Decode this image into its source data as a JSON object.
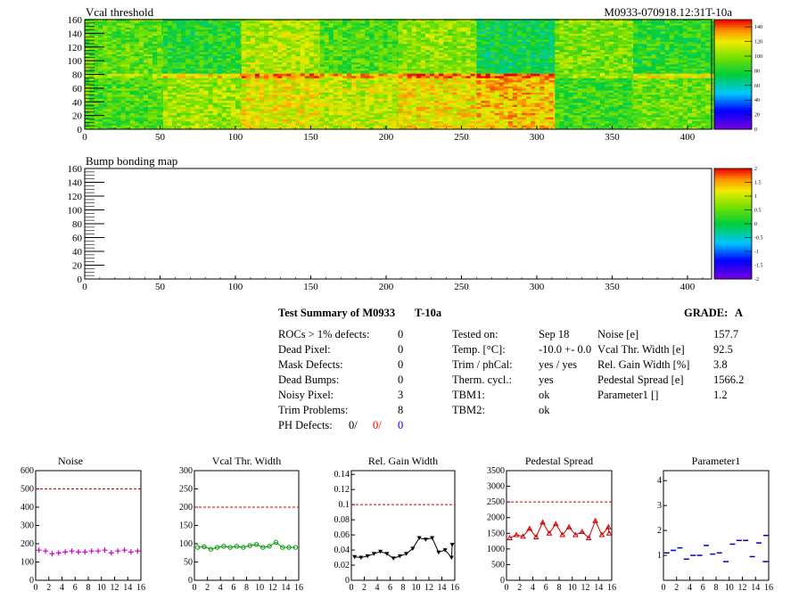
{
  "maps": [
    {
      "title": "Vcal threshold",
      "header_right": "M0933-070918.12:31T-10a",
      "x_ticks": [
        "0",
        "50",
        "100",
        "150",
        "200",
        "250",
        "300",
        "350",
        "400"
      ],
      "y_ticks": [
        "0",
        "20",
        "40",
        "60",
        "80",
        "100",
        "120",
        "140",
        "160"
      ],
      "palette_labels": [
        "0",
        "20",
        "40",
        "60",
        "80",
        "100",
        "120",
        "140"
      ],
      "palette_range": [
        0,
        150
      ]
    },
    {
      "title": "Bump bonding map",
      "x_ticks": [
        "0",
        "50",
        "100",
        "150",
        "200",
        "250",
        "300",
        "350",
        "400"
      ],
      "y_ticks": [
        "0",
        "20",
        "40",
        "60",
        "80",
        "100",
        "120",
        "140",
        "160"
      ],
      "palette_labels": [
        "-2",
        "-1.5",
        "-1",
        "-0.5",
        "0",
        "0.5",
        "1",
        "1.5",
        "2"
      ],
      "palette_range": [
        -2,
        2
      ]
    }
  ],
  "summary": {
    "heading": "Test Summary of M0933",
    "temp_tag": "T-10a",
    "grade_label": "GRADE:",
    "grade": "A",
    "col1": [
      {
        "label": "ROCs > 1% defects:",
        "value": "0"
      },
      {
        "label": "Dead Pixel:",
        "value": "0"
      },
      {
        "label": "Mask Defects:",
        "value": "0"
      },
      {
        "label": "Dead Bumps:",
        "value": "0"
      },
      {
        "label": "Noisy Pixel:",
        "value": "3"
      },
      {
        "label": "Trim Problems:",
        "value": "8"
      }
    ],
    "ph_label": "PH Defects:",
    "ph_values": [
      {
        "text": "0/",
        "color": "#000000"
      },
      {
        "text": "0/",
        "color": "#ff0000"
      },
      {
        "text": "0",
        "color": "#0000ff"
      }
    ],
    "col2": [
      {
        "label": "Tested on:",
        "value": "Sep 18"
      },
      {
        "label": "Temp. [°C]:",
        "value": "-10.0 +- 0.0"
      },
      {
        "label": "Trim / phCal:",
        "value": "yes / yes"
      },
      {
        "label": "Therm. cycl.:",
        "value": "yes"
      },
      {
        "label": "TBM1:",
        "value": "ok"
      },
      {
        "label": "TBM2:",
        "value": "ok"
      }
    ],
    "col3": [
      {
        "label": "Noise [e]",
        "value": "157.7"
      },
      {
        "label": "Vcal Thr. Width [e]",
        "value": "92.5"
      },
      {
        "label": "Rel. Gain Width [%]",
        "value": "3.8"
      },
      {
        "label": "Pedestal Spread [e]",
        "value": "1566.2"
      },
      {
        "label": "Parameter1 []",
        "value": "1.2"
      }
    ]
  },
  "chart_data": [
    {
      "type": "scatter",
      "title": "Noise",
      "color": "#cc00cc",
      "marker": "plus",
      "x": [
        0,
        1,
        2,
        3,
        4,
        5,
        6,
        7,
        8,
        9,
        10,
        11,
        12,
        13,
        14,
        15
      ],
      "values": [
        165,
        160,
        145,
        150,
        155,
        160,
        155,
        155,
        160,
        160,
        165,
        150,
        160,
        165,
        155,
        160
      ],
      "ylim": [
        0,
        600
      ],
      "y_ticks": [
        "0",
        "100",
        "200",
        "300",
        "400",
        "500",
        "600"
      ],
      "limit": 500,
      "connect": false
    },
    {
      "type": "line",
      "title": "Vcal Thr. Width",
      "color": "#009900",
      "marker": "circle",
      "x": [
        0,
        1,
        2,
        3,
        4,
        5,
        6,
        7,
        8,
        9,
        10,
        11,
        12,
        13,
        14,
        15
      ],
      "values": [
        90,
        92,
        85,
        90,
        93,
        90,
        93,
        90,
        95,
        98,
        90,
        93,
        104,
        90,
        90,
        90
      ],
      "ylim": [
        0,
        300
      ],
      "y_ticks": [
        "0",
        "50",
        "100",
        "150",
        "200",
        "250",
        "300"
      ],
      "limit": 200,
      "connect": true
    },
    {
      "type": "line",
      "title": "Rel. Gain Width",
      "color": "#000000",
      "marker": "triangle-down",
      "x": [
        0,
        1,
        2,
        3,
        4,
        5,
        6,
        7,
        8,
        9,
        10,
        11,
        12,
        13,
        14,
        15
      ],
      "values": [
        0.031,
        0.03,
        0.032,
        0.035,
        0.038,
        0.035,
        0.029,
        0.032,
        0.035,
        0.042,
        0.056,
        0.054,
        0.056,
        0.037,
        0.04,
        0.03
      ],
      "last": [
        15.6,
        0.047
      ],
      "ylim": [
        0,
        0.145
      ],
      "y_ticks": [
        "0",
        "0.02",
        "0.04",
        "0.06",
        "0.08",
        "0.1",
        "0.12",
        "0.14"
      ],
      "limit": 0.1,
      "connect": true
    },
    {
      "type": "line",
      "title": "Pedestal Spread",
      "color": "#cc0000",
      "marker": "triangle-up",
      "x": [
        0,
        1,
        2,
        3,
        4,
        5,
        6,
        7,
        8,
        9,
        10,
        11,
        12,
        13,
        14,
        15
      ],
      "values": [
        1350,
        1450,
        1400,
        1650,
        1380,
        1850,
        1500,
        1800,
        1450,
        1700,
        1450,
        1550,
        1350,
        1900,
        1450,
        1700
      ],
      "last": [
        15.6,
        1500
      ],
      "ylim": [
        0,
        3500
      ],
      "y_ticks": [
        "0",
        "500",
        "1000",
        "1500",
        "2000",
        "2500",
        "3000",
        "3500"
      ],
      "limit": 2500,
      "connect": true
    },
    {
      "type": "scatter",
      "title": "Parameter1",
      "color": "#0000cc",
      "marker": "hbar",
      "x": [
        0,
        1,
        2,
        3,
        4,
        5,
        6,
        7,
        8,
        9,
        10,
        11,
        12,
        13,
        14,
        15
      ],
      "values": [
        1.1,
        1.2,
        1.3,
        0.85,
        1.0,
        1.0,
        1.4,
        1.05,
        1.1,
        0.75,
        1.45,
        1.6,
        1.6,
        0.95,
        1.5,
        0.75
      ],
      "last": [
        15.6,
        1.8
      ],
      "ylim": [
        0,
        4.4
      ],
      "y_ticks": [
        "1",
        "2",
        "3",
        "4"
      ],
      "limit": null,
      "connect": false
    }
  ],
  "bottom_x_ticks": [
    "0",
    "2",
    "4",
    "6",
    "8",
    "10",
    "12",
    "14",
    "16"
  ]
}
